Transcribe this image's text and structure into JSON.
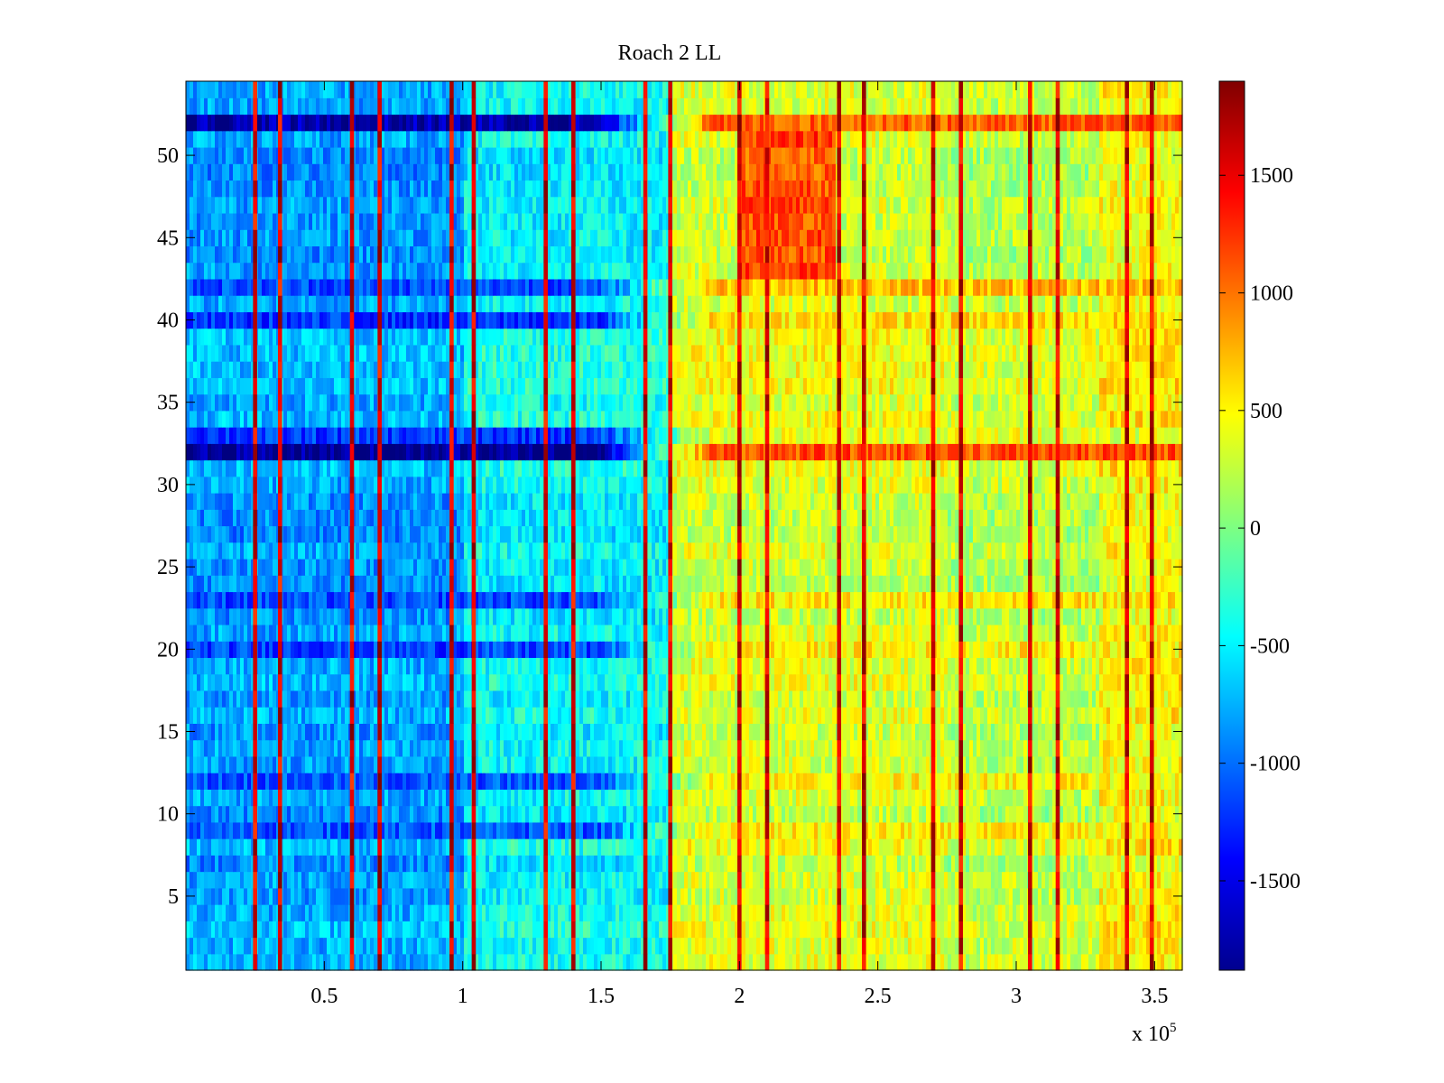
{
  "chart_data": {
    "type": "heatmap",
    "title": "Roach 2 LL",
    "xlabel": "",
    "ylabel": "",
    "x_range": [
      0,
      360000
    ],
    "y_range": [
      0.5,
      54.5
    ],
    "x_ticks": [
      50000,
      100000,
      150000,
      200000,
      250000,
      300000,
      350000
    ],
    "x_tick_labels": [
      "0.5",
      "1",
      "1.5",
      "2",
      "2.5",
      "3",
      "3.5"
    ],
    "x_exponent_label": "x 10",
    "x_exponent_power": "5",
    "y_ticks": [
      5,
      10,
      15,
      20,
      25,
      30,
      35,
      40,
      45,
      50
    ],
    "y_tick_labels": [
      "5",
      "10",
      "15",
      "20",
      "25",
      "30",
      "35",
      "40",
      "45",
      "50"
    ],
    "colormap": "jet",
    "color_range": [
      -1880,
      1900
    ],
    "colorbar_ticks": [
      -1500,
      -1000,
      -500,
      0,
      500,
      1000,
      1500
    ],
    "colorbar_tick_labels": [
      "-1500",
      "-1000",
      "-500",
      "0",
      "500",
      "1000",
      "1500"
    ],
    "rows": 54,
    "vertical_stripes_x": [
      25000,
      34000,
      60000,
      70000,
      96000,
      104000,
      130000,
      140000,
      166000,
      175000,
      200000,
      210000,
      236000,
      245000,
      270000,
      280000,
      305000,
      315000,
      340000,
      349000
    ],
    "vertical_stripe_value": 1900,
    "region_levels": [
      {
        "x_from": 0,
        "x_to": 100000,
        "value": -800
      },
      {
        "x_from": 100000,
        "x_to": 175000,
        "value": -450
      },
      {
        "x_from": 175000,
        "x_to": 275000,
        "value": 350
      },
      {
        "x_from": 275000,
        "x_to": 330000,
        "value": 250
      },
      {
        "x_from": 330000,
        "x_to": 360000,
        "value": 500
      }
    ],
    "hot_region": {
      "x_from": 200000,
      "x_to": 235000,
      "y_from": 43,
      "y_to": 51,
      "value": 1200
    },
    "low_rows": [
      {
        "row": 32,
        "value_left": -1850,
        "value_right": 1100
      },
      {
        "row": 52,
        "value_left": -1800,
        "value_right": 1000
      },
      {
        "row": 12,
        "value_left": -1000,
        "value_right": 600
      },
      {
        "row": 20,
        "value_left": -1100,
        "value_right": 600
      },
      {
        "row": 23,
        "value_left": -1050,
        "value_right": 650
      },
      {
        "row": 9,
        "value_left": -1000,
        "value_right": 600
      },
      {
        "row": 40,
        "value_left": -1150,
        "value_right": 700
      },
      {
        "row": 42,
        "value_left": -1150,
        "value_right": 700
      },
      {
        "row": 33,
        "value_left": -1100,
        "value_right": 500
      }
    ]
  }
}
